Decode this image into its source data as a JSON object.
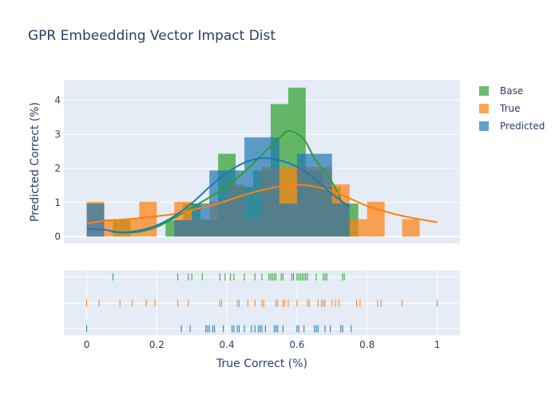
{
  "chart_data": {
    "type": "histogram",
    "title": "GPR Embeedding Vector Impact Dist",
    "xlabel": "True Correct (%)",
    "ylabel": "Predicted Correct (%)",
    "xlim": [
      -0.065,
      1.065
    ],
    "ylim": [
      -0.2,
      4.6
    ],
    "x_ticks": [
      0,
      0.2,
      0.4,
      0.6,
      0.8,
      1
    ],
    "x_tick_labels": [
      "0",
      "0.2",
      "0.4",
      "0.6",
      "0.8",
      "1"
    ],
    "y_ticks": [
      0,
      1,
      2,
      3,
      4
    ],
    "y_tick_labels": [
      "0",
      "1",
      "2",
      "3",
      "4"
    ],
    "legend_position": "right",
    "series": [
      {
        "name": "Base",
        "color": "#2ca02c",
        "bins": [
          {
            "x0": 0.075,
            "x1": 0.125,
            "y": 0.48
          },
          {
            "x0": 0.225,
            "x1": 0.275,
            "y": 0.48
          },
          {
            "x0": 0.275,
            "x1": 0.325,
            "y": 0.97
          },
          {
            "x0": 0.325,
            "x1": 0.375,
            "y": 0.48
          },
          {
            "x0": 0.375,
            "x1": 0.425,
            "y": 2.43
          },
          {
            "x0": 0.425,
            "x1": 0.475,
            "y": 1.46
          },
          {
            "x0": 0.475,
            "x1": 0.525,
            "y": 1.94
          },
          {
            "x0": 0.525,
            "x1": 0.575,
            "y": 3.89
          },
          {
            "x0": 0.575,
            "x1": 0.625,
            "y": 4.37
          },
          {
            "x0": 0.625,
            "x1": 0.675,
            "y": 1.94
          },
          {
            "x0": 0.675,
            "x1": 0.725,
            "y": 1.46
          },
          {
            "x0": 0.725,
            "x1": 0.775,
            "y": 0.97
          }
        ],
        "kde": [
          [
            0.07,
            0.14
          ],
          [
            0.1,
            0.12
          ],
          [
            0.15,
            0.14
          ],
          [
            0.2,
            0.28
          ],
          [
            0.25,
            0.55
          ],
          [
            0.3,
            0.85
          ],
          [
            0.35,
            1.15
          ],
          [
            0.4,
            1.5
          ],
          [
            0.45,
            1.9
          ],
          [
            0.5,
            2.4
          ],
          [
            0.55,
            2.9
          ],
          [
            0.58,
            3.1
          ],
          [
            0.62,
            2.85
          ],
          [
            0.65,
            2.3
          ],
          [
            0.7,
            1.6
          ],
          [
            0.73,
            0.95
          ]
        ],
        "rug": [
          0.075,
          0.26,
          0.29,
          0.3,
          0.33,
          0.38,
          0.395,
          0.41,
          0.42,
          0.45,
          0.48,
          0.5,
          0.52,
          0.525,
          0.53,
          0.535,
          0.54,
          0.555,
          0.56,
          0.585,
          0.59,
          0.6,
          0.605,
          0.61,
          0.615,
          0.62,
          0.625,
          0.63,
          0.655,
          0.675,
          0.68,
          0.685,
          0.73,
          0.735
        ]
      },
      {
        "name": "True",
        "color": "#ff7f0e",
        "bins": [
          {
            "x0": 0.0,
            "x1": 0.05,
            "y": 1.02
          },
          {
            "x0": 0.05,
            "x1": 0.1,
            "y": 0.51
          },
          {
            "x0": 0.1,
            "x1": 0.15,
            "y": 0.51
          },
          {
            "x0": 0.15,
            "x1": 0.2,
            "y": 1.02
          },
          {
            "x0": 0.25,
            "x1": 0.3,
            "y": 1.02
          },
          {
            "x0": 0.3,
            "x1": 0.35,
            "y": 0.51
          },
          {
            "x0": 0.35,
            "x1": 0.4,
            "y": 1.02
          },
          {
            "x0": 0.4,
            "x1": 0.45,
            "y": 1.53
          },
          {
            "x0": 0.45,
            "x1": 0.5,
            "y": 0.51
          },
          {
            "x0": 0.5,
            "x1": 0.55,
            "y": 2.04
          },
          {
            "x0": 0.55,
            "x1": 0.6,
            "y": 2.04
          },
          {
            "x0": 0.6,
            "x1": 0.65,
            "y": 2.04
          },
          {
            "x0": 0.65,
            "x1": 0.7,
            "y": 2.04
          },
          {
            "x0": 0.7,
            "x1": 0.75,
            "y": 1.53
          },
          {
            "x0": 0.75,
            "x1": 0.8,
            "y": 0.51
          },
          {
            "x0": 0.8,
            "x1": 0.85,
            "y": 1.02
          },
          {
            "x0": 0.9,
            "x1": 0.95,
            "y": 0.51
          }
        ],
        "kde": [
          [
            0.0,
            0.38
          ],
          [
            0.05,
            0.46
          ],
          [
            0.1,
            0.5
          ],
          [
            0.15,
            0.54
          ],
          [
            0.2,
            0.6
          ],
          [
            0.25,
            0.66
          ],
          [
            0.3,
            0.78
          ],
          [
            0.35,
            0.9
          ],
          [
            0.4,
            1.05
          ],
          [
            0.45,
            1.22
          ],
          [
            0.5,
            1.36
          ],
          [
            0.55,
            1.47
          ],
          [
            0.6,
            1.52
          ],
          [
            0.65,
            1.47
          ],
          [
            0.7,
            1.33
          ],
          [
            0.75,
            1.12
          ],
          [
            0.8,
            0.9
          ],
          [
            0.85,
            0.74
          ],
          [
            0.9,
            0.61
          ],
          [
            0.95,
            0.51
          ],
          [
            1.0,
            0.42
          ]
        ],
        "rug": [
          0.0,
          0.035,
          0.095,
          0.13,
          0.17,
          0.195,
          0.26,
          0.29,
          0.38,
          0.385,
          0.43,
          0.435,
          0.46,
          0.48,
          0.5,
          0.505,
          0.54,
          0.545,
          0.56,
          0.565,
          0.575,
          0.6,
          0.63,
          0.635,
          0.66,
          0.67,
          0.675,
          0.68,
          0.7,
          0.71,
          0.72,
          0.77,
          0.78,
          0.83,
          0.84,
          0.9,
          1.0
        ]
      },
      {
        "name": "Predicted",
        "color": "#1f77b4",
        "bins": [
          {
            "x0": 0.0,
            "x1": 0.05,
            "y": 0.97
          },
          {
            "x0": 0.25,
            "x1": 0.3,
            "y": 0.48
          },
          {
            "x0": 0.3,
            "x1": 0.35,
            "y": 0.97
          },
          {
            "x0": 0.35,
            "x1": 0.4,
            "y": 1.94
          },
          {
            "x0": 0.4,
            "x1": 0.45,
            "y": 1.94
          },
          {
            "x0": 0.45,
            "x1": 0.5,
            "y": 2.91
          },
          {
            "x0": 0.5,
            "x1": 0.55,
            "y": 2.91
          },
          {
            "x0": 0.55,
            "x1": 0.6,
            "y": 0.97
          },
          {
            "x0": 0.6,
            "x1": 0.65,
            "y": 2.43
          },
          {
            "x0": 0.65,
            "x1": 0.7,
            "y": 2.43
          },
          {
            "x0": 0.7,
            "x1": 0.75,
            "y": 0.97
          }
        ],
        "kde": [
          [
            0.0,
            0.23
          ],
          [
            0.05,
            0.2
          ],
          [
            0.1,
            0.12
          ],
          [
            0.15,
            0.18
          ],
          [
            0.2,
            0.33
          ],
          [
            0.25,
            0.6
          ],
          [
            0.3,
            0.98
          ],
          [
            0.35,
            1.45
          ],
          [
            0.4,
            1.87
          ],
          [
            0.45,
            2.17
          ],
          [
            0.5,
            2.3
          ],
          [
            0.55,
            2.24
          ],
          [
            0.6,
            2.05
          ],
          [
            0.65,
            1.7
          ],
          [
            0.7,
            1.25
          ],
          [
            0.75,
            0.87
          ]
        ],
        "rug": [
          0.0,
          0.27,
          0.295,
          0.34,
          0.345,
          0.35,
          0.36,
          0.365,
          0.39,
          0.415,
          0.42,
          0.43,
          0.435,
          0.45,
          0.47,
          0.48,
          0.49,
          0.495,
          0.5,
          0.51,
          0.535,
          0.54,
          0.545,
          0.56,
          0.6,
          0.605,
          0.62,
          0.65,
          0.655,
          0.66,
          0.68,
          0.695,
          0.725,
          0.73,
          0.755
        ]
      }
    ],
    "legend_order": [
      "Base",
      "True",
      "Predicted"
    ]
  }
}
